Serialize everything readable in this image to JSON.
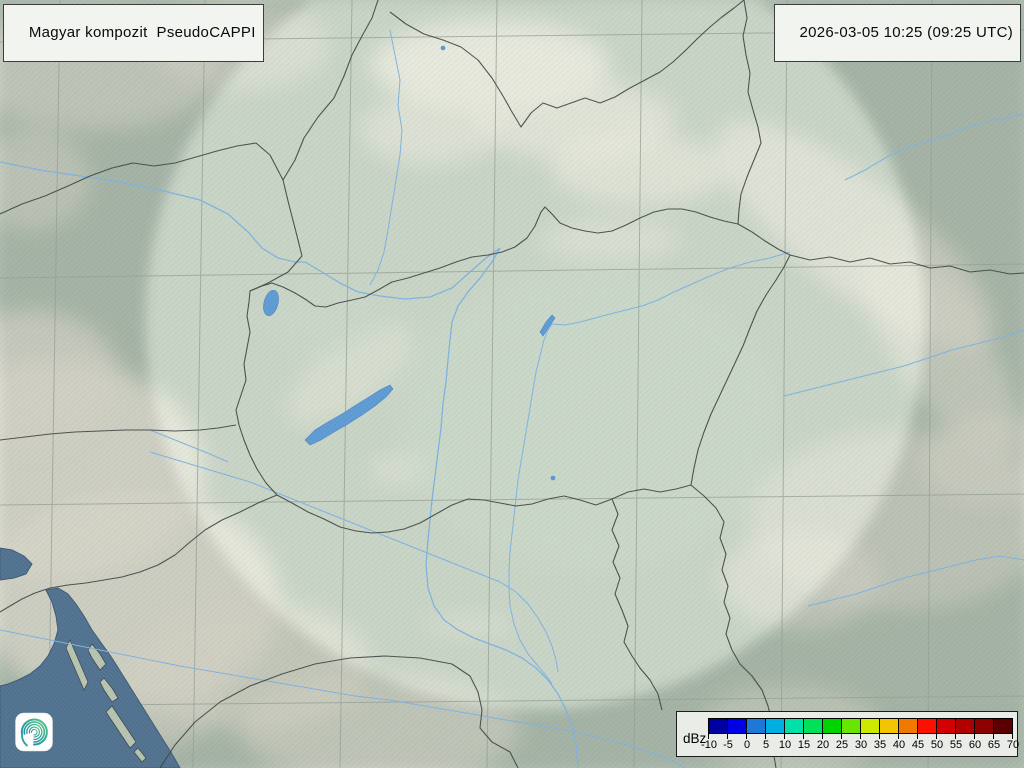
{
  "header": {
    "product_label": "Magyar kompozit  PseudoCAPPI",
    "timestamp": "2026-03-05 10:25 (09:25 UTC)"
  },
  "legend": {
    "unit_label": "dBz",
    "tick_labels": [
      "-10",
      "-5",
      "0",
      "5",
      "10",
      "15",
      "20",
      "25",
      "30",
      "35",
      "40",
      "45",
      "50",
      "55",
      "60",
      "65",
      "70"
    ],
    "colors": [
      "#0000A0",
      "#0000E6",
      "#1E78D8",
      "#00AEE0",
      "#00E0A8",
      "#00E058",
      "#00D400",
      "#66E600",
      "#CCEA00",
      "#F2C500",
      "#F07A00",
      "#FE1000",
      "#D40000",
      "#B00000",
      "#8C0000",
      "#5A0000"
    ]
  },
  "map": {
    "coverage_area": "radar-composite-circle",
    "colors": {
      "land": "#b2c1b2",
      "sea": "#50718f",
      "river": "#7fb2e0",
      "lake": "#5d9bd4",
      "border": "#3c4340",
      "mountain": "#ece7db"
    }
  },
  "logo": {
    "icon": "weather-service-swirl-logo"
  }
}
